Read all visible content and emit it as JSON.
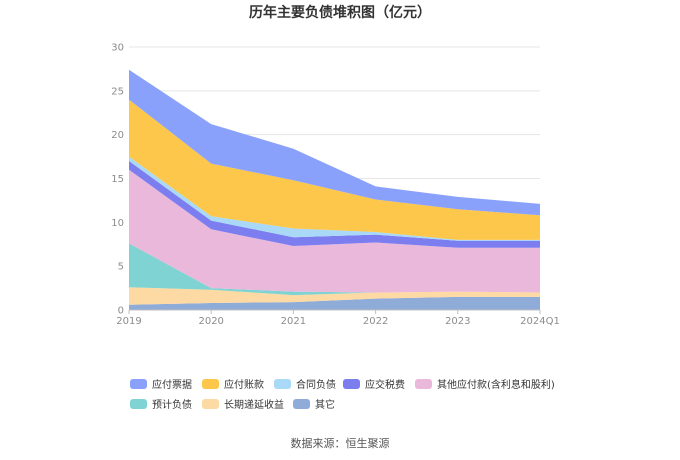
{
  "chart_data": {
    "type": "area",
    "stacked": true,
    "title": "历年主要负债堆积图（亿元）",
    "xlabel": "",
    "ylabel": "",
    "categories": [
      "2019",
      "2020",
      "2021",
      "2022",
      "2023",
      "2024Q1"
    ],
    "ylim": [
      0,
      30
    ],
    "yticks": [
      0,
      5,
      10,
      15,
      20,
      25,
      30
    ],
    "grid": true,
    "legend_position": "bottom",
    "series": [
      {
        "name": "其它",
        "color": "#8fabd8",
        "values": [
          0.6,
          0.8,
          0.9,
          1.3,
          1.5,
          1.5
        ]
      },
      {
        "name": "长期递延收益",
        "color": "#fdd9a4",
        "values": [
          2.0,
          1.5,
          0.8,
          0.7,
          0.6,
          0.5
        ]
      },
      {
        "name": "预计负债",
        "color": "#7fd3d2",
        "values": [
          5.0,
          0.2,
          0.4,
          0.0,
          0.0,
          0.0
        ]
      },
      {
        "name": "其他应付款(含利息和股利)",
        "color": "#eab8da",
        "values": [
          8.4,
          6.7,
          5.2,
          5.7,
          5.0,
          5.1
        ]
      },
      {
        "name": "应交税费",
        "color": "#7c7ef0",
        "values": [
          1.0,
          1.0,
          1.0,
          0.9,
          0.8,
          0.8
        ]
      },
      {
        "name": "合同负债",
        "color": "#a9d9f7",
        "values": [
          0.5,
          0.5,
          1.0,
          0.3,
          0.1,
          0.1
        ]
      },
      {
        "name": "应付账款",
        "color": "#fcc74a",
        "values": [
          6.5,
          6.0,
          5.5,
          3.7,
          3.5,
          2.8
        ]
      },
      {
        "name": "应付票据",
        "color": "#8aa1fb",
        "values": [
          3.4,
          4.5,
          3.6,
          1.5,
          1.4,
          1.3
        ]
      }
    ],
    "legend_order": [
      "应付票据",
      "应付账款",
      "合同负债",
      "应交税费",
      "其他应付款(含利息和股利)",
      "预计负债",
      "长期递延收益",
      "其它"
    ],
    "source": "数据来源：恒生聚源"
  }
}
